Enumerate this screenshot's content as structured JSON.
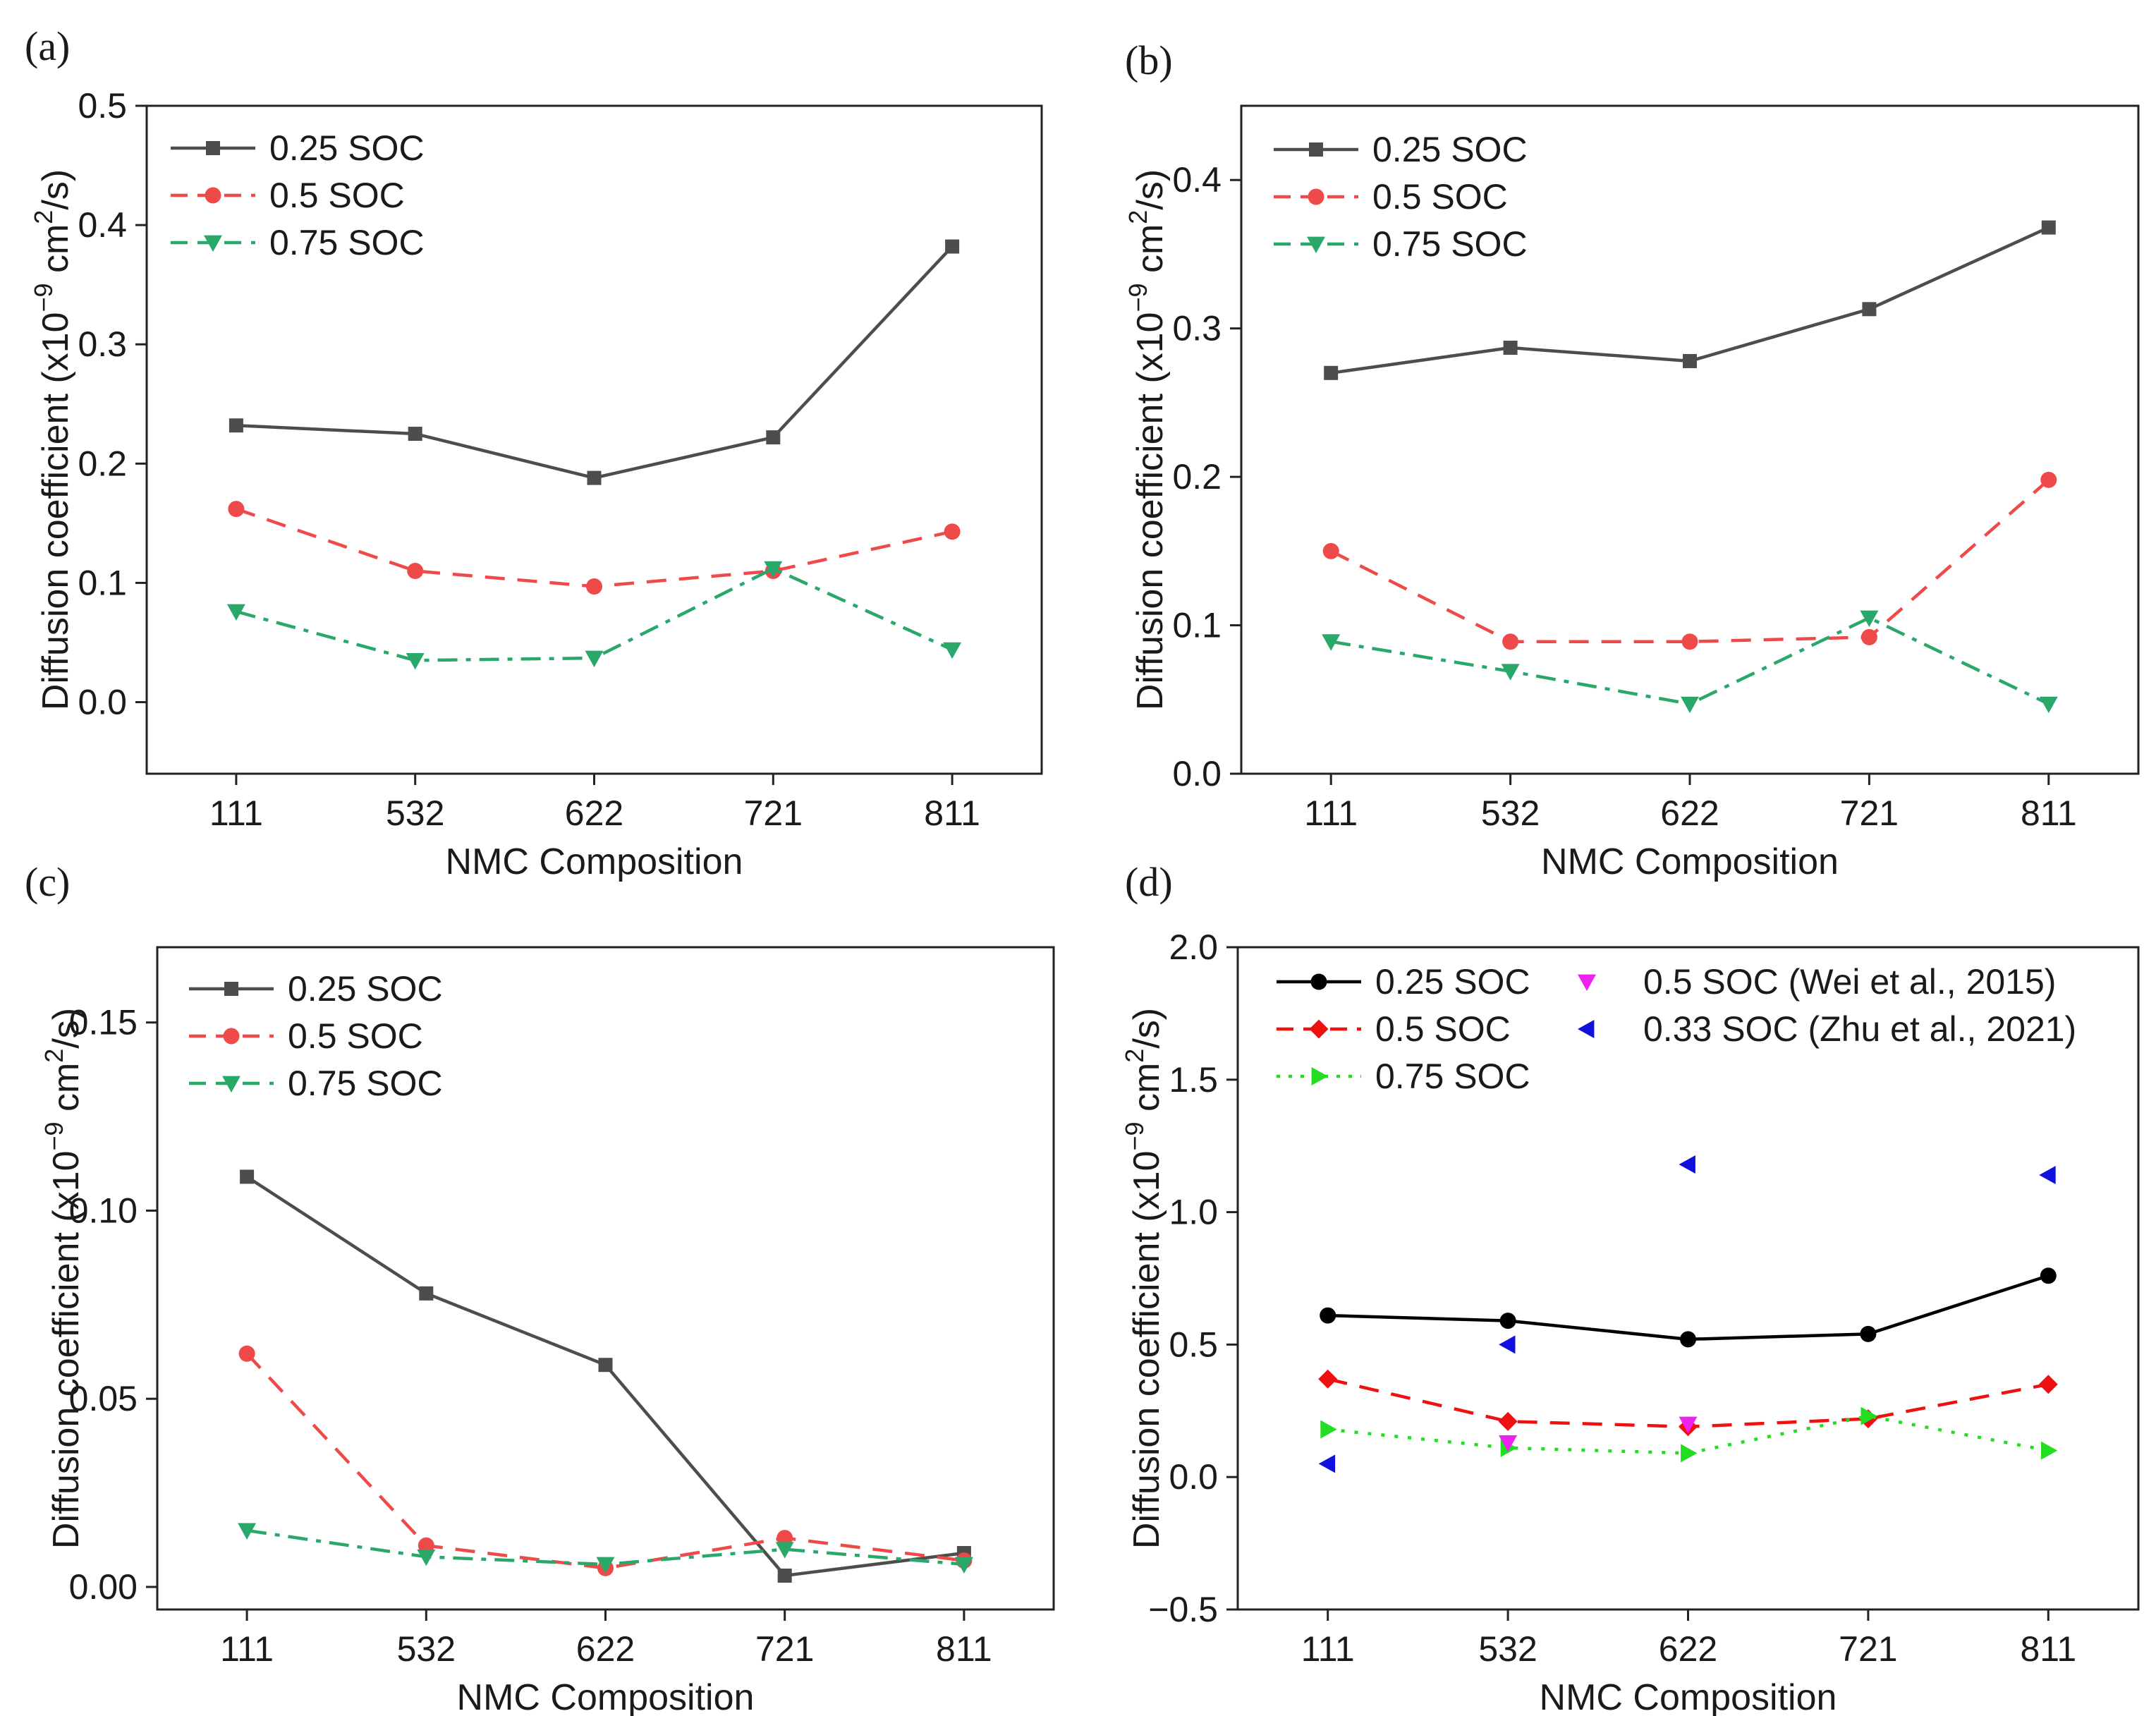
{
  "chart_data": [
    {
      "type": "line",
      "panel_label": "(a)",
      "xlabel": "NMC Composition",
      "ylabel": "Diffusion coefficient (x10",
      "ylabel_exp": "−9",
      "ylabel_unit": " cm",
      "ylabel_sq": "2",
      "ylabel_tail": "/s)",
      "categories": [
        "111",
        "532",
        "622",
        "721",
        "811"
      ],
      "ylim": [
        -0.06,
        0.5
      ],
      "yticks": [
        0.0,
        0.1,
        0.2,
        0.3,
        0.4,
        0.5
      ],
      "ytick_labels": [
        "0.0",
        "0.1",
        "0.2",
        "0.3",
        "0.4",
        "0.5"
      ],
      "legend_position": "top-left",
      "grid": false,
      "series": [
        {
          "name": "0.25 SOC",
          "values": [
            0.232,
            0.225,
            0.188,
            0.222,
            0.382
          ],
          "color": "#4d4d4d",
          "marker": "square",
          "dash": "solid"
        },
        {
          "name": "0.5 SOC",
          "values": [
            0.162,
            0.11,
            0.097,
            0.11,
            0.143
          ],
          "color": "#ef4a4a",
          "marker": "circle",
          "dash": "dash"
        },
        {
          "name": "0.75 SOC",
          "values": [
            0.076,
            0.035,
            0.037,
            0.112,
            0.044
          ],
          "color": "#2aa86a",
          "marker": "triangle-down",
          "dash": "dashdot"
        }
      ]
    },
    {
      "type": "line",
      "panel_label": "(b)",
      "xlabel": "NMC Composition",
      "ylabel": "Diffusion coefficient (x10",
      "ylabel_exp": "−9",
      "ylabel_unit": " cm",
      "ylabel_sq": "2",
      "ylabel_tail": "/s)",
      "categories": [
        "111",
        "532",
        "622",
        "721",
        "811"
      ],
      "ylim": [
        0.0,
        0.45
      ],
      "yticks": [
        0.0,
        0.1,
        0.2,
        0.3,
        0.4
      ],
      "ytick_labels": [
        "0.0",
        "0.1",
        "0.2",
        "0.3",
        "0.4"
      ],
      "legend_position": "top-left",
      "grid": false,
      "series": [
        {
          "name": "0.25 SOC",
          "values": [
            0.27,
            0.287,
            0.278,
            0.313,
            0.368
          ],
          "color": "#4d4d4d",
          "marker": "square",
          "dash": "solid"
        },
        {
          "name": "0.5 SOC",
          "values": [
            0.15,
            0.089,
            0.089,
            0.092,
            0.198
          ],
          "color": "#ef4a4a",
          "marker": "circle",
          "dash": "dash"
        },
        {
          "name": "0.75 SOC",
          "values": [
            0.089,
            0.069,
            0.047,
            0.105,
            0.047
          ],
          "color": "#2aa86a",
          "marker": "triangle-down",
          "dash": "dashdot"
        }
      ]
    },
    {
      "type": "line",
      "panel_label": "(c)",
      "xlabel": "NMC Composition",
      "ylabel": "Diffusion coefficient (x10",
      "ylabel_exp": "−9",
      "ylabel_unit": " cm",
      "ylabel_sq": "2",
      "ylabel_tail": "/s)",
      "categories": [
        "111",
        "532",
        "622",
        "721",
        "811"
      ],
      "ylim": [
        -0.006,
        0.17
      ],
      "yticks": [
        0.0,
        0.05,
        0.1,
        0.15
      ],
      "ytick_labels": [
        "0.00",
        "0.05",
        "0.10",
        "0.15"
      ],
      "legend_position": "top-left",
      "grid": false,
      "series": [
        {
          "name": "0.25 SOC",
          "values": [
            0.109,
            0.078,
            0.059,
            0.003,
            0.009
          ],
          "color": "#4d4d4d",
          "marker": "square",
          "dash": "solid"
        },
        {
          "name": "0.5 SOC",
          "values": [
            0.062,
            0.011,
            0.005,
            0.013,
            0.007
          ],
          "color": "#ef4a4a",
          "marker": "circle",
          "dash": "dash"
        },
        {
          "name": "0.75 SOC",
          "values": [
            0.015,
            0.008,
            0.006,
            0.01,
            0.006
          ],
          "color": "#2aa86a",
          "marker": "triangle-down",
          "dash": "dashdot"
        }
      ]
    },
    {
      "type": "line",
      "panel_label": "(d)",
      "xlabel": "NMC Composition",
      "ylabel": "Diffusion coefficient (x10",
      "ylabel_exp": "−9",
      "ylabel_unit": " cm",
      "ylabel_sq": "2",
      "ylabel_tail": "/s)",
      "categories": [
        "111",
        "532",
        "622",
        "721",
        "811"
      ],
      "ylim": [
        -0.5,
        2.0
      ],
      "yticks": [
        -0.5,
        0.0,
        0.5,
        1.0,
        1.5,
        2.0
      ],
      "ytick_labels": [
        "−0.5",
        "0.0",
        "0.5",
        "1.0",
        "1.5",
        "2.0"
      ],
      "legend_position": "top-left",
      "grid": false,
      "series": [
        {
          "name": "0.25 SOC",
          "values": [
            0.61,
            0.59,
            0.52,
            0.54,
            0.76
          ],
          "color": "#000000",
          "marker": "circle",
          "dash": "solid"
        },
        {
          "name": "0.5 SOC",
          "values": [
            0.37,
            0.21,
            0.19,
            0.22,
            0.35
          ],
          "color": "#ee1111",
          "marker": "diamond",
          "dash": "dash"
        },
        {
          "name": "0.75 SOC",
          "values": [
            0.18,
            0.11,
            0.09,
            0.23,
            0.1
          ],
          "color": "#22dd22",
          "marker": "triangle-right",
          "dash": "dot"
        },
        {
          "name": "0.5 SOC (Wei et al., 2015)",
          "values": [
            null,
            0.13,
            0.2,
            null,
            null
          ],
          "color": "#ee22ee",
          "marker": "triangle-down",
          "dash": "none"
        },
        {
          "name": "0.33 SOC (Zhu et al., 2021)",
          "values": [
            0.05,
            0.5,
            1.18,
            null,
            1.14
          ],
          "color": "#1111dd",
          "marker": "triangle-left",
          "dash": "none"
        }
      ]
    }
  ]
}
